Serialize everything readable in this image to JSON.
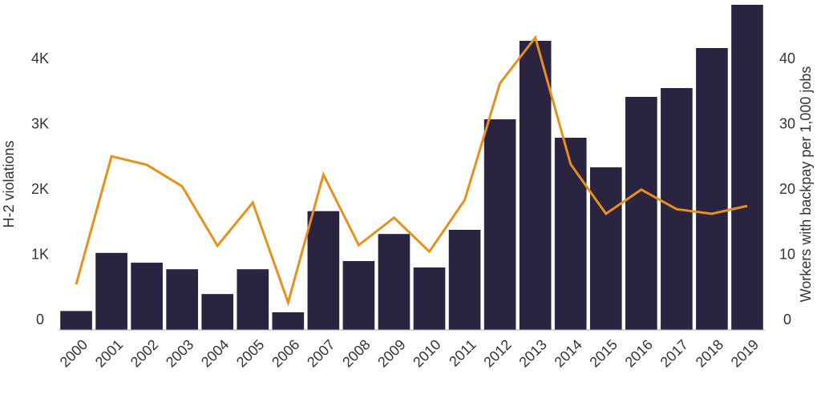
{
  "chart_data": {
    "type": "bar_line",
    "y_label": "H-2 violations",
    "y2_label": "Workers with backpay per 1,000 jobs",
    "categories": [
      "2000",
      "2001",
      "2002",
      "2003",
      "2004",
      "2005",
      "2006",
      "2007",
      "2008",
      "2009",
      "2010",
      "2011",
      "2012",
      "2013",
      "2014",
      "2015",
      "2016",
      "2017",
      "2018",
      "2019"
    ],
    "series": [
      {
        "type": "bar",
        "color": "#2a2440",
        "values": [
          290,
          1180,
          1030,
          930,
          550,
          930,
          270,
          1820,
          1055,
          1470,
          957,
          1534,
          3227,
          4430,
          2945,
          2491,
          3571,
          3706,
          4319,
          4982
        ]
      },
      {
        "type": "line",
        "axis": "y2",
        "color": "#e8901a",
        "values": [
          7.0,
          26.6,
          25.3,
          22.0,
          12.9,
          19.5,
          4.2,
          23.8,
          13.0,
          17.2,
          12.0,
          19.9,
          37.8,
          44.8,
          25.4,
          17.8,
          21.5,
          18.5,
          17.8,
          19.0
        ]
      }
    ],
    "ylim": [
      0,
      5000
    ],
    "yticks": [
      0,
      {
        "value": 1000,
        "label": "1K"
      },
      {
        "value": 2000,
        "label": "2K"
      },
      {
        "value": 3000,
        "label": "3K"
      },
      {
        "value": 4000,
        "label": "4K"
      }
    ],
    "y2lim": [
      0,
      50
    ],
    "y2ticks": [
      0,
      10,
      20,
      30,
      40
    ]
  }
}
